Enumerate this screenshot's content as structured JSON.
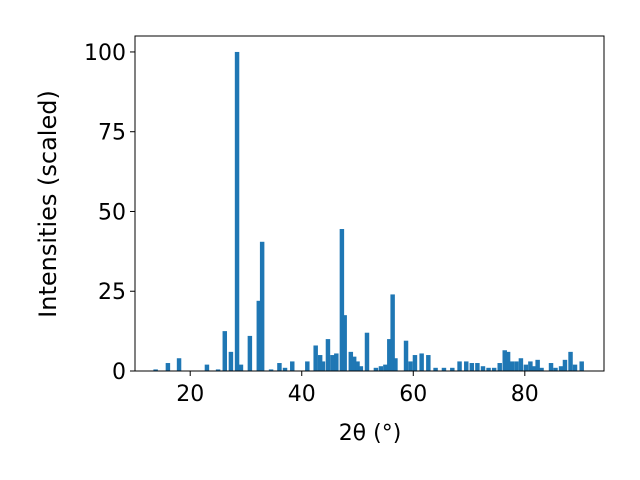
{
  "chart_data": {
    "type": "bar",
    "xlabel": "2θ (°)",
    "ylabel": "Intensities (scaled)",
    "color": "#1f77b4",
    "bar_width": 0.8,
    "x": [
      13.8,
      16,
      18,
      23,
      25,
      26.2,
      27.3,
      28.4,
      29.1,
      30.7,
      32.3,
      32.9,
      34.5,
      36,
      37,
      38.3,
      41,
      42.5,
      43.3,
      43.8,
      44.7,
      45.5,
      46.2,
      47.2,
      47.7,
      48.8,
      49.4,
      50,
      50.6,
      51.7,
      53.3,
      54.2,
      55,
      55.7,
      56.3,
      56.8,
      58.7,
      59.5,
      60.3,
      61.5,
      62.7,
      64,
      65.5,
      67,
      68.3,
      69.5,
      70.5,
      71.5,
      72.5,
      73.5,
      74.5,
      75.5,
      76.4,
      77,
      77.7,
      78.5,
      79.3,
      80.2,
      81,
      81.7,
      82.3,
      83,
      84.7,
      85.5,
      86.5,
      87.2,
      88.2,
      89,
      90.2
    ],
    "values": [
      0.5,
      2.5,
      4,
      2,
      0.5,
      12.5,
      6,
      100,
      2,
      11,
      22,
      40.5,
      0.5,
      2.5,
      1,
      3,
      3,
      8,
      5,
      3,
      10,
      5,
      5.5,
      44.5,
      17.5,
      6,
      4.5,
      3,
      1.5,
      12,
      1,
      1.5,
      2,
      10,
      24,
      4,
      9.5,
      3,
      5,
      5.5,
      5,
      1,
      1,
      1,
      3,
      3,
      2.5,
      2.5,
      1.5,
      1,
      1,
      2.5,
      6.5,
      6,
      3,
      3,
      4,
      2,
      3,
      1.5,
      3.5,
      1,
      2.5,
      1,
      1.5,
      3.5,
      6,
      2,
      3
    ],
    "xlim": [
      10.1,
      94.2
    ],
    "ylim": [
      0,
      105
    ],
    "xticks": [
      20,
      40,
      60,
      80
    ],
    "yticks": [
      0,
      25,
      50,
      75,
      100
    ]
  }
}
